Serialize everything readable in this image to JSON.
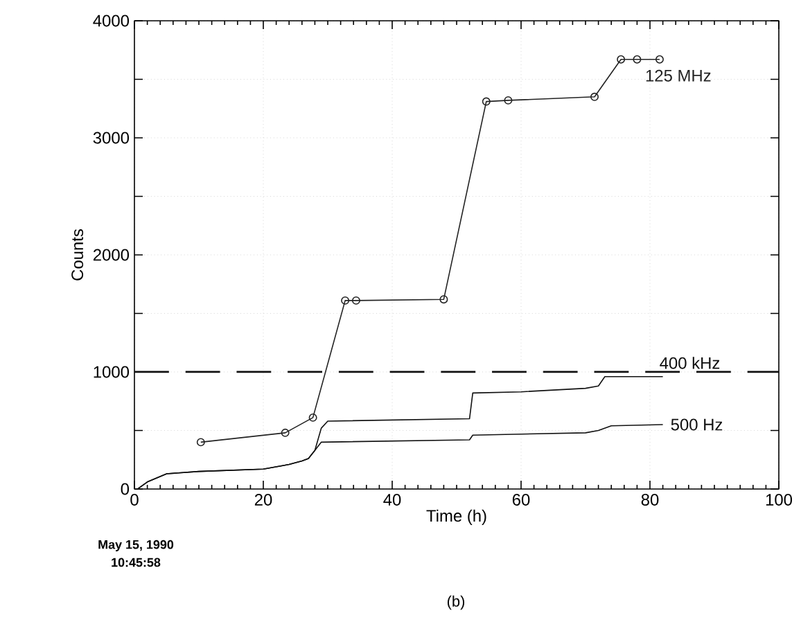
{
  "chart_data": {
    "type": "line",
    "xlabel": "Time (h)",
    "ylabel": "Counts",
    "xlim": [
      0,
      100
    ],
    "ylim": [
      0,
      4000
    ],
    "xticks": [
      0,
      20,
      40,
      60,
      80,
      100
    ],
    "yticks": [
      0,
      {
        "value": 500,
        "label": null
      },
      1000,
      {
        "value": 1500,
        "label": null
      },
      2000,
      {
        "value": 2500,
        "label": null
      },
      3000,
      {
        "value": 3500,
        "label": null
      },
      4000
    ],
    "grid": true,
    "series": [
      {
        "name": "125 MHz",
        "color": "#222222",
        "marker": "circle",
        "x": [
          10.3,
          23.4,
          27.7,
          32.7,
          34.4,
          48,
          54.6,
          58,
          71.4,
          75.5,
          78,
          81.5
        ],
        "values": [
          400,
          480,
          610,
          1610,
          1610,
          1620,
          3310,
          3320,
          3350,
          3670,
          3670,
          3670
        ]
      },
      {
        "name": "400 kHz",
        "color": "#111111",
        "marker": "none",
        "x": [
          0.5,
          2,
          5,
          10,
          20,
          23,
          24,
          26,
          27,
          28,
          29,
          30,
          52,
          52.5,
          60,
          70,
          72,
          73,
          82
        ],
        "values": [
          0,
          60,
          130,
          150,
          170,
          200,
          210,
          240,
          260,
          330,
          520,
          580,
          600,
          820,
          830,
          860,
          880,
          960,
          960
        ]
      },
      {
        "name": "500 Hz",
        "color": "#111111",
        "marker": "none",
        "x": [
          0.5,
          2,
          5,
          10,
          20,
          23,
          24,
          26,
          27,
          28,
          29,
          52,
          52.5,
          70,
          72,
          74,
          82
        ],
        "values": [
          0,
          60,
          130,
          150,
          170,
          200,
          210,
          240,
          260,
          330,
          400,
          420,
          460,
          480,
          500,
          540,
          550
        ]
      }
    ],
    "ref_lines": [
      {
        "axis": "y",
        "value": 1000,
        "color": "#111111",
        "line_style": "dashed"
      }
    ],
    "annotations": [
      "May 15, 1990",
      "10:45:58",
      "(b)"
    ]
  }
}
